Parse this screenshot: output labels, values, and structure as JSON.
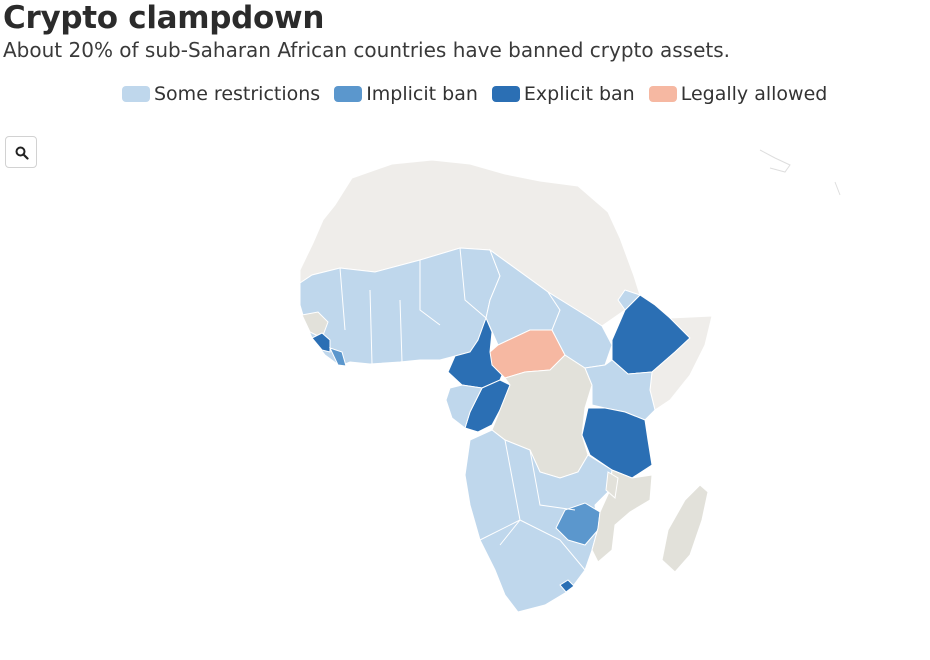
{
  "header": {
    "title": "Crypto clampdown",
    "subtitle": "About 20% of sub-Saharan African countries have banned crypto assets."
  },
  "legend": [
    {
      "label": "Some restrictions",
      "color": "#bfd7ec"
    },
    {
      "label": "Implicit ban",
      "color": "#5b97cd"
    },
    {
      "label": "Explicit ban",
      "color": "#2b6fb4"
    },
    {
      "label": "Legally allowed",
      "color": "#f6b8a2"
    }
  ],
  "map_colors": {
    "no_data": "#efedea",
    "no_data_dark": "#e2e1da",
    "some_restrictions": "#bfd7ec",
    "implicit_ban": "#5b97cd",
    "explicit_ban": "#2b6fb4",
    "legally_allowed": "#f6b8a2"
  },
  "controls": {
    "zoom_icon": "search-icon"
  }
}
